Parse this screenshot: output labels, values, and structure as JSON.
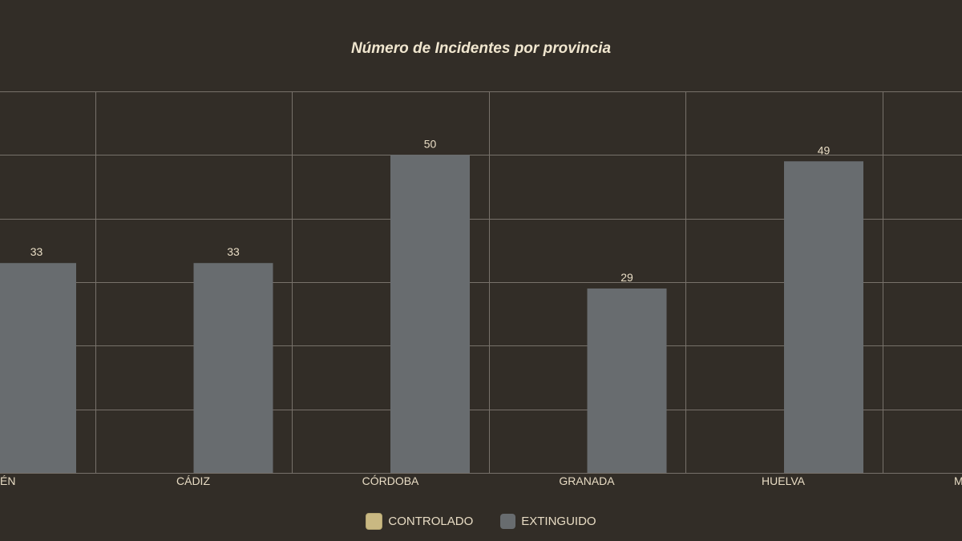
{
  "chart_data": {
    "type": "bar",
    "title": "Número de Incidentes por provincia",
    "categories": [
      "JAÉN",
      "CÁDIZ",
      "CÓRDOBA",
      "GRANADA",
      "HUELVA",
      "MÁLAGA"
    ],
    "visible_category_labels": [
      "ÉN",
      "CÁDIZ",
      "CÓRDOBA",
      "GRANADA",
      "HUELVA",
      "M"
    ],
    "series": [
      {
        "name": "CONTROLADO",
        "color": "#c9b882",
        "values": [
          0,
          0,
          0,
          0,
          0,
          0
        ]
      },
      {
        "name": "EXTINGUIDO",
        "color": "#686c6f",
        "values": [
          33,
          33,
          50,
          29,
          49,
          null
        ]
      }
    ],
    "data_labels": [
      "33",
      "33",
      "50",
      "29",
      "49"
    ],
    "ylim": [
      0,
      60
    ],
    "grid": true,
    "legend_position": "bottom-center"
  },
  "colors": {
    "background": "#322d27",
    "grid": "#77716a",
    "text": "#e8dcc4"
  }
}
